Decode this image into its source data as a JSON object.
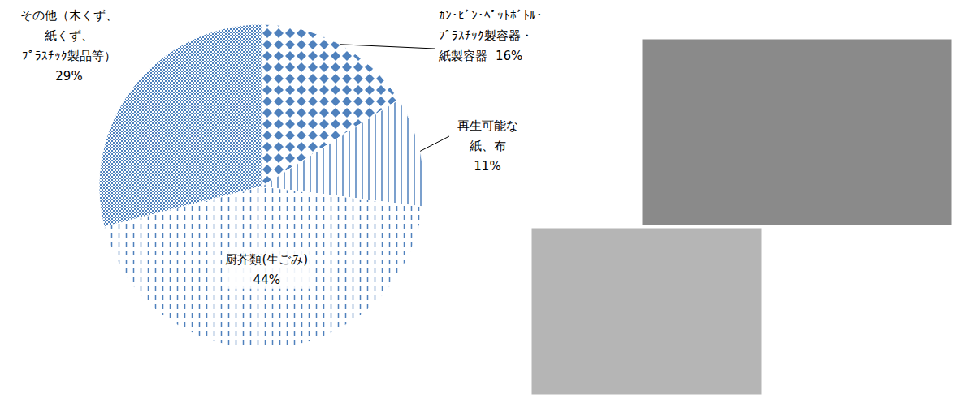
{
  "chart_data": {
    "type": "pie",
    "categories": [
      "ｶﾝ・ﾋﾞﾝ･ﾍﾟｯﾄﾎﾞﾄﾙ・ﾌﾟﾗｽﾁｯｸ製容器・紙製容器",
      "再生可能な紙、布",
      "厨芥類(生ごみ)",
      "その他（木くず、紙くず、ﾌﾟﾗｽﾁｯｸ製品等）"
    ],
    "values": [
      16,
      11,
      44,
      29
    ],
    "value_labels": [
      "16%",
      "11%",
      "44%",
      "29%"
    ],
    "colors": [
      "#4f81bd",
      "#4f81bd",
      "#4f81bd",
      "#4f81bd"
    ],
    "data_labels": true
  }
}
